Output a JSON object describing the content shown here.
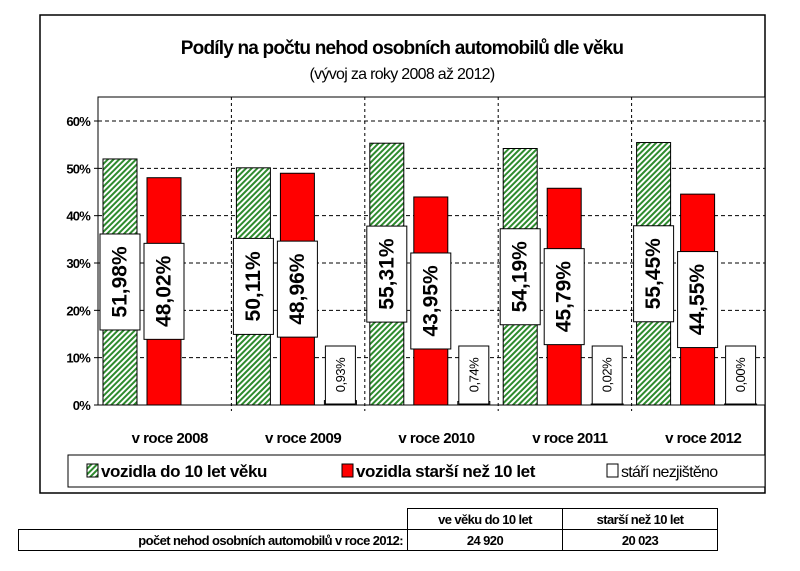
{
  "chart_data": {
    "type": "bar",
    "title": "Podíly na počtu nehod osobních automobilů dle věku",
    "subtitle": "(vývoj za roky 2008 až 2012)",
    "categories": [
      "v roce 2008",
      "v roce 2009",
      "v roce 2010",
      "v roce 2011",
      "v roce 2012"
    ],
    "yticks": [
      "0%",
      "10%",
      "20%",
      "30%",
      "40%",
      "50%",
      "60%"
    ],
    "ylim": [
      0,
      60
    ],
    "grid": true,
    "legend_position": "bottom",
    "series": [
      {
        "name": "vozidla do 10 let věku",
        "color": "#2e8b2e",
        "values": [
          51.98,
          50.11,
          55.31,
          54.19,
          55.45
        ],
        "labels": [
          "51,98%",
          "50,11%",
          "55,31%",
          "54,19%",
          "55,45%"
        ]
      },
      {
        "name": "vozidla starší než 10 let",
        "color": "#ff0000",
        "values": [
          48.02,
          48.96,
          43.95,
          45.79,
          44.55
        ],
        "labels": [
          "48,02%",
          "48,96%",
          "43,95%",
          "45,79%",
          "44,55%"
        ]
      },
      {
        "name": "stáří nezjištěno",
        "color": "#ffffff",
        "values": [
          0,
          0.93,
          0.74,
          0.02,
          0.0
        ],
        "labels": [
          "",
          "0,93%",
          "0,74%",
          "0,02%",
          "0,00%"
        ]
      }
    ]
  },
  "table": {
    "headers": [
      "ve věku do 10 let",
      "starší než 10 let"
    ],
    "row_label": "počet nehod osobních automobilů v roce 2012:",
    "values": [
      "24 920",
      "20 023"
    ]
  }
}
